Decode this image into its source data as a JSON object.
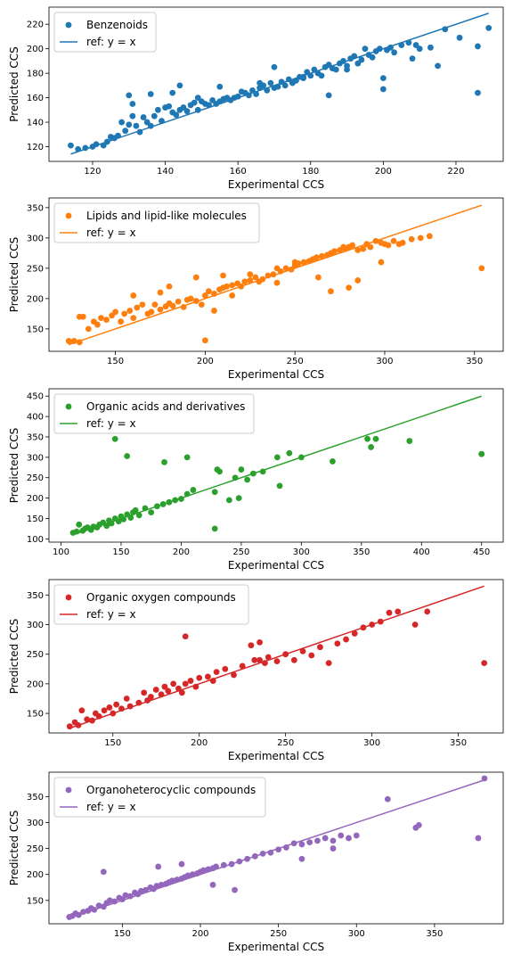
{
  "chart_data": [
    {
      "type": "scatter",
      "xlabel": "Experimental CCS",
      "ylabel": "Predicted CCS",
      "xlim": [
        108,
        233
      ],
      "ylim": [
        108,
        234
      ],
      "xticks": [
        120,
        140,
        160,
        180,
        200,
        220
      ],
      "yticks": [
        120,
        140,
        160,
        180,
        200,
        220
      ],
      "legend_position": "top-left",
      "color": "#1f77b4",
      "series": [
        {
          "name": "Benzenoids",
          "kind": "points",
          "x": [
            114,
            116,
            118,
            120,
            121,
            123,
            124,
            125,
            126,
            127,
            128,
            129,
            130,
            130,
            131,
            132,
            133,
            134,
            135,
            136,
            137,
            138,
            139,
            140,
            141,
            142,
            143,
            144,
            145,
            146,
            147,
            148,
            149,
            150,
            151,
            152,
            153,
            154,
            155,
            156,
            157,
            158,
            159,
            160,
            161,
            162,
            163,
            164,
            165,
            166,
            167,
            168,
            169,
            170,
            171,
            172,
            173,
            174,
            175,
            176,
            177,
            178,
            179,
            180,
            181,
            182,
            183,
            184,
            185,
            186,
            187,
            188,
            189,
            190,
            191,
            192,
            193,
            194,
            195,
            196,
            197,
            198,
            199,
            200,
            201,
            202,
            203,
            205,
            207,
            208,
            210,
            213,
            215,
            217,
            221,
            226,
            229,
            131,
            142,
            144,
            155,
            166,
            170,
            178,
            185,
            190,
            200,
            209,
            226,
            149,
            136
          ],
          "y": [
            121,
            118,
            119,
            120,
            122,
            121,
            124,
            128,
            127,
            129,
            140,
            133,
            138,
            162,
            155,
            137,
            132,
            144,
            140,
            137,
            145,
            150,
            141,
            152,
            153,
            148,
            146,
            150,
            152,
            149,
            154,
            156,
            150,
            157,
            155,
            154,
            158,
            155,
            157,
            159,
            160,
            158,
            160,
            161,
            165,
            164,
            162,
            166,
            163,
            168,
            170,
            166,
            172,
            168,
            169,
            173,
            170,
            175,
            172,
            174,
            177,
            176,
            181,
            178,
            183,
            180,
            178,
            185,
            187,
            184,
            183,
            188,
            190,
            186,
            192,
            194,
            188,
            191,
            200,
            195,
            193,
            198,
            200,
            176,
            199,
            201,
            197,
            203,
            205,
            192,
            200,
            201,
            186,
            216,
            209,
            164,
            217,
            145,
            164,
            170,
            169,
            172,
            185,
            177,
            162,
            183,
            167,
            203,
            202,
            160,
            163
          ]
        },
        {
          "name": "ref: y = x",
          "kind": "line",
          "x": [
            114,
            229
          ],
          "y": [
            114,
            229
          ]
        }
      ]
    },
    {
      "type": "scatter",
      "xlabel": "Experimental CCS",
      "ylabel": "Predicted CCS",
      "xlim": [
        113,
        366
      ],
      "ylim": [
        113,
        366
      ],
      "xticks": [
        150,
        200,
        250,
        300,
        350
      ],
      "yticks": [
        150,
        200,
        250,
        300,
        350
      ],
      "legend_position": "top-left",
      "color": "#ff7f0e",
      "series": [
        {
          "name": "Lipids and lipid-like molecules",
          "kind": "points",
          "x": [
            124,
            127,
            130,
            132,
            135,
            138,
            140,
            142,
            145,
            148,
            150,
            153,
            155,
            158,
            160,
            162,
            165,
            168,
            170,
            172,
            175,
            178,
            180,
            182,
            185,
            188,
            190,
            192,
            195,
            198,
            200,
            202,
            205,
            208,
            210,
            212,
            215,
            218,
            220,
            222,
            225,
            228,
            230,
            232,
            235,
            238,
            240,
            242,
            245,
            248,
            250,
            252,
            255,
            258,
            260,
            262,
            265,
            268,
            270,
            272,
            275,
            278,
            280,
            282,
            285,
            288,
            290,
            292,
            295,
            298,
            300,
            302,
            305,
            310,
            315,
            320,
            325,
            354,
            200,
            210,
            225,
            240,
            250,
            280,
            285,
            270,
            130,
            160,
            175,
            180,
            195,
            205,
            215,
            263,
            277,
            298,
            308
          ],
          "y": [
            130,
            130,
            128,
            170,
            150,
            162,
            157,
            168,
            165,
            172,
            178,
            162,
            175,
            180,
            168,
            185,
            190,
            175,
            178,
            190,
            182,
            187,
            192,
            188,
            195,
            186,
            198,
            200,
            196,
            190,
            205,
            212,
            208,
            215,
            218,
            220,
            222,
            225,
            220,
            228,
            230,
            235,
            228,
            232,
            238,
            240,
            226,
            245,
            250,
            248,
            255,
            258,
            260,
            262,
            265,
            268,
            270,
            272,
            275,
            278,
            280,
            282,
            285,
            288,
            280,
            282,
            290,
            285,
            295,
            292,
            290,
            288,
            295,
            292,
            298,
            300,
            303,
            250,
            131,
            238,
            240,
            250,
            260,
            218,
            230,
            212,
            170,
            205,
            210,
            220,
            235,
            180,
            205,
            235,
            285,
            260,
            290
          ]
        },
        {
          "name": "ref: y = x",
          "kind": "line",
          "x": [
            124,
            354
          ],
          "y": [
            124,
            354
          ]
        }
      ]
    },
    {
      "type": "scatter",
      "xlabel": "Experimental CCS",
      "ylabel": "Predicted CCS",
      "xlim": [
        90,
        468
      ],
      "ylim": [
        92,
        468
      ],
      "xticks": [
        100,
        150,
        200,
        250,
        300,
        350,
        400,
        450
      ],
      "yticks": [
        100,
        150,
        200,
        250,
        300,
        350,
        400,
        450
      ],
      "legend_position": "top-left",
      "color": "#2ca02c",
      "series": [
        {
          "name": "Organic acids and derivatives",
          "kind": "points",
          "x": [
            110,
            113,
            115,
            118,
            120,
            122,
            125,
            127,
            130,
            132,
            135,
            138,
            140,
            142,
            145,
            148,
            150,
            152,
            155,
            158,
            160,
            162,
            165,
            170,
            175,
            180,
            185,
            190,
            195,
            200,
            205,
            210,
            228,
            230,
            232,
            240,
            245,
            248,
            250,
            255,
            260,
            268,
            282,
            290,
            300,
            326,
            355,
            358,
            362,
            390,
            450,
            145,
            155,
            186,
            205,
            228,
            280
          ],
          "y": [
            115,
            118,
            135,
            120,
            125,
            128,
            122,
            130,
            128,
            135,
            140,
            132,
            145,
            138,
            150,
            143,
            155,
            148,
            160,
            152,
            165,
            170,
            158,
            175,
            165,
            180,
            185,
            190,
            195,
            198,
            210,
            220,
            215,
            270,
            265,
            195,
            250,
            200,
            270,
            245,
            260,
            265,
            230,
            310,
            300,
            290,
            345,
            325,
            345,
            340,
            308,
            345,
            303,
            288,
            300,
            125,
            300
          ]
        },
        {
          "name": "ref: y = x",
          "kind": "line",
          "x": [
            110,
            450
          ],
          "y": [
            110,
            450
          ]
        }
      ]
    },
    {
      "type": "scatter",
      "xlabel": "Experimental CCS",
      "ylabel": "Predicted CCS",
      "xlim": [
        113,
        376
      ],
      "ylim": [
        117,
        376
      ],
      "xticks": [
        150,
        200,
        250,
        300,
        350
      ],
      "yticks": [
        150,
        200,
        250,
        300,
        350
      ],
      "legend_position": "top-left",
      "color": "#d62728",
      "series": [
        {
          "name": "Organic oxygen compounds",
          "kind": "points",
          "x": [
            125,
            128,
            130,
            132,
            135,
            138,
            140,
            142,
            145,
            148,
            150,
            152,
            155,
            158,
            160,
            165,
            168,
            170,
            172,
            175,
            178,
            180,
            182,
            185,
            188,
            190,
            192,
            195,
            198,
            200,
            205,
            208,
            210,
            215,
            220,
            225,
            230,
            232,
            235,
            238,
            240,
            245,
            250,
            255,
            260,
            265,
            270,
            275,
            280,
            285,
            290,
            295,
            300,
            305,
            310,
            315,
            325,
            332,
            365,
            192,
            235
          ],
          "y": [
            128,
            135,
            130,
            155,
            140,
            138,
            150,
            145,
            155,
            160,
            150,
            165,
            158,
            175,
            162,
            168,
            185,
            172,
            178,
            190,
            182,
            195,
            188,
            200,
            192,
            185,
            200,
            205,
            195,
            210,
            212,
            205,
            220,
            225,
            215,
            230,
            265,
            240,
            270,
            235,
            245,
            238,
            250,
            240,
            255,
            248,
            262,
            235,
            268,
            275,
            285,
            295,
            300,
            305,
            320,
            322,
            300,
            322,
            235,
            280,
            240
          ]
        },
        {
          "name": "ref: y = x",
          "kind": "line",
          "x": [
            125,
            365
          ],
          "y": [
            125,
            365
          ]
        }
      ]
    },
    {
      "type": "scatter",
      "xlabel": "Experimental CCS",
      "ylabel": "Predicted CCS",
      "xlim": [
        103,
        394
      ],
      "ylim": [
        105,
        397
      ],
      "xticks": [
        150,
        200,
        250,
        300,
        350
      ],
      "yticks": [
        150,
        200,
        250,
        300,
        350
      ],
      "legend_position": "top-left",
      "color": "#9467bd",
      "series": [
        {
          "name": "Organoheterocyclic compounds",
          "kind": "points",
          "x": [
            116,
            118,
            120,
            122,
            125,
            128,
            130,
            132,
            135,
            138,
            140,
            142,
            145,
            148,
            150,
            152,
            155,
            158,
            160,
            162,
            165,
            168,
            170,
            172,
            175,
            178,
            180,
            182,
            185,
            188,
            190,
            192,
            195,
            198,
            200,
            202,
            205,
            208,
            210,
            215,
            220,
            225,
            230,
            235,
            240,
            245,
            250,
            255,
            260,
            265,
            270,
            275,
            280,
            285,
            290,
            295,
            300,
            320,
            338,
            340,
            378,
            382,
            138,
            173,
            208,
            222,
            265,
            285,
            188
          ],
          "y": [
            118,
            120,
            125,
            122,
            128,
            130,
            135,
            132,
            140,
            138,
            145,
            150,
            148,
            155,
            152,
            160,
            158,
            165,
            162,
            168,
            170,
            175,
            172,
            178,
            180,
            182,
            185,
            188,
            190,
            192,
            195,
            198,
            200,
            202,
            205,
            208,
            210,
            212,
            215,
            218,
            220,
            225,
            230,
            235,
            240,
            242,
            248,
            252,
            260,
            258,
            262,
            265,
            270,
            265,
            275,
            270,
            275,
            345,
            290,
            295,
            270,
            385,
            205,
            215,
            180,
            170,
            230,
            250,
            220
          ]
        },
        {
          "name": "ref: y = x",
          "kind": "line",
          "x": [
            116,
            382
          ],
          "y": [
            116,
            382
          ]
        }
      ]
    }
  ]
}
